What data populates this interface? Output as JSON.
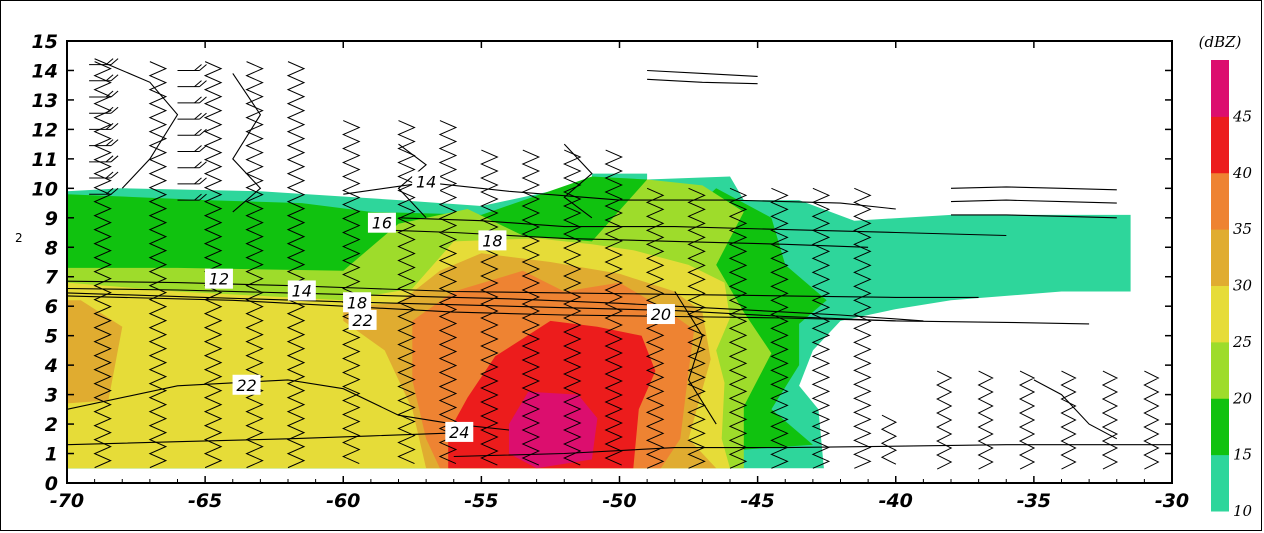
{
  "chart_data": {
    "type": "heatmap",
    "title": "",
    "xlabel": "",
    "ylabel": "",
    "xlim": [
      -70,
      -30
    ],
    "ylim": [
      0,
      15
    ],
    "x_ticks": [
      "-70",
      "-65",
      "-60",
      "-55",
      "-50",
      "-45",
      "-40",
      "-35",
      "-30"
    ],
    "y_ticks": [
      "0",
      "1",
      "2",
      "3",
      "4",
      "5",
      "6",
      "7",
      "8",
      "9",
      "10",
      "11",
      "12",
      "13",
      "14",
      "15"
    ],
    "colorbar": {
      "unit_label": "(dBZ)",
      "levels": [
        10,
        15,
        20,
        25,
        30,
        35,
        40,
        45
      ],
      "tick_labels": [
        "10",
        "15",
        "20",
        "25",
        "30",
        "35",
        "40",
        "45"
      ],
      "colors": [
        "#2ed69b",
        "#10c20f",
        "#9edc2b",
        "#e6dc38",
        "#e0ac30",
        "#ee8332",
        "#ec1c1c",
        "#dc0e6e"
      ]
    },
    "reflectivity_regions": [
      {
        "dbz_min": 10,
        "polygon": [
          [
            -70,
            9.9
          ],
          [
            -68,
            10
          ],
          [
            -63,
            9.9
          ],
          [
            -58,
            9.6
          ],
          [
            -55,
            9.4
          ],
          [
            -51,
            10.2
          ],
          [
            -51,
            10.5
          ],
          [
            -49,
            10.5
          ],
          [
            -49,
            10.3
          ],
          [
            -46,
            10.4
          ],
          [
            -45.5,
            9.6
          ],
          [
            -43.5,
            9.6
          ],
          [
            -41.5,
            8.9
          ],
          [
            -38,
            9.1
          ],
          [
            -34.5,
            9.1
          ],
          [
            -31.5,
            9.1
          ],
          [
            -31.5,
            6.5
          ],
          [
            -34,
            6.5
          ],
          [
            -38,
            6.2
          ],
          [
            -40,
            5.9
          ],
          [
            -42,
            5.5
          ],
          [
            -43,
            4.5
          ],
          [
            -43.5,
            3.3
          ],
          [
            -42.8,
            2.5
          ],
          [
            -42.6,
            0.5
          ],
          [
            -55,
            0.5
          ],
          [
            -70,
            0.5
          ]
        ]
      },
      {
        "dbz_min": 15,
        "polygon": [
          [
            -70,
            9.8
          ],
          [
            -65,
            9.6
          ],
          [
            -61.5,
            9.5
          ],
          [
            -59,
            9.2
          ],
          [
            -55,
            9.1
          ],
          [
            -51,
            10.4
          ],
          [
            -49,
            10.3
          ],
          [
            -48,
            8.7
          ],
          [
            -46.5,
            10
          ],
          [
            -44.5,
            9
          ],
          [
            -44,
            7.4
          ],
          [
            -42.5,
            6.2
          ],
          [
            -43.5,
            5.4
          ],
          [
            -43.5,
            4
          ],
          [
            -44.5,
            2.5
          ],
          [
            -43,
            1.3
          ],
          [
            -55,
            0.5
          ],
          [
            -70,
            0.5
          ]
        ]
      },
      {
        "dbz_min": 20,
        "polygon": [
          [
            -70,
            7.3
          ],
          [
            -66,
            7.3
          ],
          [
            -60,
            7.2
          ],
          [
            -58,
            8.8
          ],
          [
            -55.5,
            9.3
          ],
          [
            -53.5,
            8.4
          ],
          [
            -51,
            8.2
          ],
          [
            -49,
            10.3
          ],
          [
            -47,
            10.1
          ],
          [
            -45.5,
            9.2
          ],
          [
            -46.5,
            7.4
          ],
          [
            -45.5,
            5.8
          ],
          [
            -44.5,
            4.4
          ],
          [
            -45.5,
            2.6
          ],
          [
            -45.5,
            0.5
          ],
          [
            -70,
            0.5
          ]
        ]
      },
      {
        "dbz_min": 25,
        "polygon": [
          [
            -70,
            6.8
          ],
          [
            -66,
            6.5
          ],
          [
            -60,
            6.2
          ],
          [
            -57.5,
            6.6
          ],
          [
            -56,
            8.2
          ],
          [
            -53,
            8.3
          ],
          [
            -51,
            8.1
          ],
          [
            -49.5,
            7.9
          ],
          [
            -47.5,
            7.4
          ],
          [
            -46.2,
            6.8
          ],
          [
            -46,
            5.6
          ],
          [
            -46.5,
            4.5
          ],
          [
            -46.2,
            3.4
          ],
          [
            -46.3,
            1.5
          ],
          [
            -46,
            0.5
          ],
          [
            -70,
            0.5
          ]
        ]
      },
      {
        "dbz_min": 30,
        "polygon": [
          [
            -69.5,
            6.2
          ],
          [
            -68,
            5.3
          ],
          [
            -68.5,
            2.8
          ],
          [
            -70,
            2.7
          ],
          [
            -70,
            6.2
          ]
        ]
      },
      {
        "dbz_min": 30,
        "polygon": [
          [
            -60,
            6
          ],
          [
            -58,
            6.1
          ],
          [
            -56.5,
            7.2
          ],
          [
            -55,
            7.8
          ],
          [
            -52.5,
            7.5
          ],
          [
            -50,
            7.1
          ],
          [
            -48,
            6.5
          ],
          [
            -47,
            5.8
          ],
          [
            -46.7,
            4.2
          ],
          [
            -47.5,
            1.5
          ],
          [
            -46.5,
            0.5
          ],
          [
            -57,
            0.5
          ],
          [
            -57.5,
            2.5
          ],
          [
            -58.5,
            4.5
          ],
          [
            -60,
            5.5
          ]
        ]
      },
      {
        "dbz_min": 35,
        "polygon": [
          [
            -57.5,
            5.5
          ],
          [
            -56,
            6.5
          ],
          [
            -53.5,
            7.2
          ],
          [
            -52,
            6.5
          ],
          [
            -50,
            6.8
          ],
          [
            -48.2,
            5.8
          ],
          [
            -47.3,
            5.2
          ],
          [
            -47.5,
            3.8
          ],
          [
            -47.8,
            1.5
          ],
          [
            -48.5,
            0.5
          ],
          [
            -56.5,
            0.5
          ],
          [
            -57,
            1.5
          ],
          [
            -57.5,
            3.5
          ]
        ]
      },
      {
        "dbz_min": 40,
        "polygon": [
          [
            -55.5,
            2.9
          ],
          [
            -54.5,
            4.3
          ],
          [
            -52.5,
            5.5
          ],
          [
            -50.8,
            5.3
          ],
          [
            -49.2,
            5
          ],
          [
            -48.7,
            3.8
          ],
          [
            -49.3,
            2.5
          ],
          [
            -49.5,
            0.5
          ],
          [
            -56.2,
            0.5
          ],
          [
            -56.2,
            1.7
          ]
        ]
      },
      {
        "dbz_min": 45,
        "polygon": [
          [
            -54,
            2
          ],
          [
            -53.3,
            3.1
          ],
          [
            -51.5,
            3
          ],
          [
            -50.8,
            2.2
          ],
          [
            -51,
            0.8
          ],
          [
            -53,
            0.5
          ],
          [
            -54,
            1
          ]
        ]
      }
    ],
    "contour_labels": [
      {
        "label": "12",
        "x": -64.5,
        "y": 6.9
      },
      {
        "label": "14",
        "x": -57.0,
        "y": 10.2
      },
      {
        "label": "14",
        "x": -61.5,
        "y": 6.5
      },
      {
        "label": "16",
        "x": -58.6,
        "y": 8.8
      },
      {
        "label": "18",
        "x": -54.6,
        "y": 8.2
      },
      {
        "label": "18",
        "x": -59.5,
        "y": 6.1
      },
      {
        "label": "22",
        "x": -59.3,
        "y": 5.5
      },
      {
        "label": "20",
        "x": -48.5,
        "y": 5.7
      },
      {
        "label": "22",
        "x": -63.5,
        "y": 3.3
      },
      {
        "label": "24",
        "x": -55.8,
        "y": 1.7
      }
    ],
    "contour_lines": [
      [
        [
          -70,
          6.85
        ],
        [
          -66,
          6.8
        ],
        [
          -62,
          6.7
        ],
        [
          -59,
          6.6
        ],
        [
          -56,
          6.5
        ],
        [
          -52,
          6.45
        ],
        [
          -48,
          6.4
        ],
        [
          -44,
          6.35
        ],
        [
          -40,
          6.3
        ],
        [
          -37,
          6.3
        ]
      ],
      [
        [
          -70,
          6.6
        ],
        [
          -66,
          6.55
        ],
        [
          -62,
          6.45
        ],
        [
          -58,
          6.35
        ],
        [
          -54,
          6.25
        ],
        [
          -50,
          6.1
        ],
        [
          -46,
          5.9
        ],
        [
          -42,
          5.7
        ],
        [
          -39,
          5.5
        ]
      ],
      [
        [
          -70,
          6.45
        ],
        [
          -65,
          6.3
        ],
        [
          -60,
          6.15
        ],
        [
          -56,
          6.05
        ],
        [
          -52,
          5.95
        ],
        [
          -48,
          5.85
        ],
        [
          -44,
          5.65
        ],
        [
          -40,
          5.5
        ]
      ],
      [
        [
          -70,
          6.35
        ],
        [
          -64,
          6.2
        ],
        [
          -60,
          6.0
        ],
        [
          -56,
          5.8
        ],
        [
          -52,
          5.7
        ],
        [
          -48,
          5.65
        ],
        [
          -44,
          5.6
        ],
        [
          -40,
          5.5
        ],
        [
          -36,
          5.45
        ],
        [
          -33,
          5.4
        ]
      ],
      [
        [
          -60,
          9.8
        ],
        [
          -57,
          10.2
        ],
        [
          -54,
          9.9
        ],
        [
          -50,
          9.6
        ],
        [
          -46,
          9.6
        ],
        [
          -42,
          9.5
        ],
        [
          -40,
          9.3
        ]
      ],
      [
        [
          -58,
          9.0
        ],
        [
          -55,
          8.9
        ],
        [
          -52,
          8.7
        ],
        [
          -48,
          8.7
        ],
        [
          -44,
          8.6
        ],
        [
          -40,
          8.5
        ],
        [
          -36,
          8.4
        ]
      ],
      [
        [
          -59,
          8.6
        ],
        [
          -56,
          8.5
        ],
        [
          -52,
          8.3
        ],
        [
          -48,
          8.2
        ],
        [
          -44,
          8.1
        ],
        [
          -41,
          8.0
        ]
      ],
      [
        [
          -70,
          2.5
        ],
        [
          -66,
          3.3
        ],
        [
          -62,
          3.5
        ],
        [
          -60,
          3.2
        ],
        [
          -58,
          2.3
        ],
        [
          -56,
          2.0
        ],
        [
          -54,
          1.8
        ]
      ],
      [
        [
          -70,
          1.3
        ],
        [
          -66,
          1.4
        ],
        [
          -62,
          1.5
        ],
        [
          -59,
          1.6
        ],
        [
          -56,
          1.7
        ]
      ],
      [
        [
          -56,
          0.9
        ],
        [
          -52,
          1.0
        ],
        [
          -48,
          1.2
        ],
        [
          -44,
          1.2
        ],
        [
          -40,
          1.25
        ],
        [
          -36,
          1.3
        ],
        [
          -32,
          1.3
        ],
        [
          -30,
          1.3
        ]
      ],
      [
        [
          -69,
          14.4
        ],
        [
          -67,
          13.6
        ],
        [
          -66,
          12.5
        ],
        [
          -67,
          11
        ],
        [
          -68,
          10
        ]
      ],
      [
        [
          -64,
          13.9
        ],
        [
          -63,
          12.5
        ],
        [
          -64,
          11
        ],
        [
          -63,
          10
        ],
        [
          -64,
          9.2
        ]
      ],
      [
        [
          -58,
          11.5
        ],
        [
          -57,
          10.8
        ],
        [
          -58,
          10
        ],
        [
          -57,
          9
        ]
      ],
      [
        [
          -52,
          11.5
        ],
        [
          -51,
          10.5
        ],
        [
          -52,
          9.7
        ],
        [
          -51,
          9
        ]
      ],
      [
        [
          -48,
          6.5
        ],
        [
          -47,
          5
        ],
        [
          -47.5,
          3.5
        ],
        [
          -46.5,
          2
        ]
      ],
      [
        [
          -35,
          3.5
        ],
        [
          -34,
          3
        ],
        [
          -33,
          2
        ],
        [
          -32,
          1.5
        ]
      ],
      [
        [
          -38,
          10.0
        ],
        [
          -36,
          10.05
        ],
        [
          -34,
          10.0
        ],
        [
          -32,
          9.95
        ]
      ],
      [
        [
          -38,
          9.55
        ],
        [
          -36,
          9.6
        ],
        [
          -34,
          9.55
        ],
        [
          -32,
          9.5
        ]
      ],
      [
        [
          -38,
          9.1
        ],
        [
          -36,
          9.1
        ],
        [
          -34,
          9.05
        ],
        [
          -32,
          9.0
        ]
      ],
      [
        [
          -49,
          14.0
        ],
        [
          -47,
          13.9
        ],
        [
          -45,
          13.8
        ]
      ],
      [
        [
          -49,
          13.7
        ],
        [
          -47,
          13.6
        ],
        [
          -45,
          13.55
        ]
      ]
    ]
  }
}
